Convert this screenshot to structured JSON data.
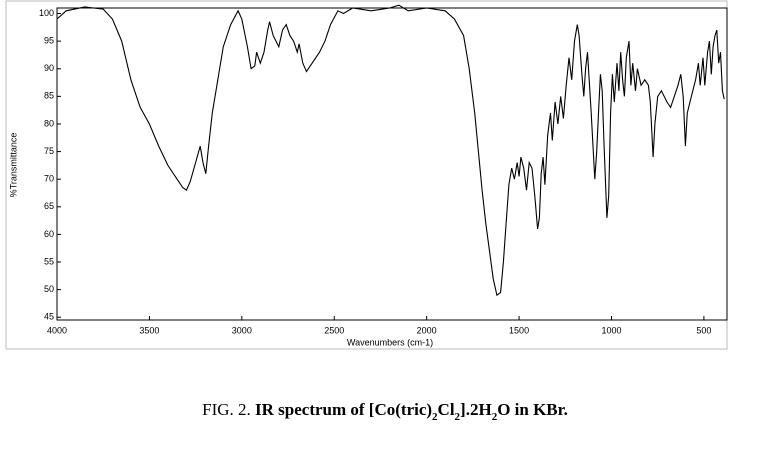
{
  "chart_data": {
    "type": "line",
    "x_label": "Wavenumbers (cm-1)",
    "y_label": "%Transmittance",
    "caption_label": "FIG. 2.",
    "caption_parts": [
      "IR spectrum of [Co(tric)",
      "2",
      "Cl",
      "2",
      "].2H",
      "2",
      "O in KBr."
    ],
    "xlim": [
      4000,
      375
    ],
    "ylim": [
      44.5,
      101
    ],
    "xticks": [
      4000,
      3500,
      3000,
      2500,
      2000,
      1500,
      1000,
      500
    ],
    "yticks": [
      45,
      50,
      55,
      60,
      65,
      70,
      75,
      80,
      85,
      90,
      95,
      100
    ],
    "color": "#000000",
    "x": [
      4000,
      3950,
      3850,
      3750,
      3700,
      3650,
      3600,
      3550,
      3500,
      3450,
      3400,
      3350,
      3320,
      3300,
      3280,
      3250,
      3225,
      3210,
      3195,
      3180,
      3160,
      3130,
      3100,
      3060,
      3020,
      3000,
      2970,
      2950,
      2930,
      2920,
      2900,
      2880,
      2860,
      2850,
      2830,
      2800,
      2780,
      2760,
      2740,
      2720,
      2700,
      2690,
      2670,
      2650,
      2620,
      2580,
      2550,
      2520,
      2480,
      2450,
      2400,
      2300,
      2200,
      2150,
      2100,
      2000,
      1900,
      1850,
      1800,
      1770,
      1740,
      1720,
      1700,
      1680,
      1660,
      1640,
      1620,
      1600,
      1585,
      1570,
      1555,
      1540,
      1525,
      1510,
      1500,
      1490,
      1475,
      1460,
      1445,
      1430,
      1415,
      1400,
      1390,
      1380,
      1370,
      1360,
      1345,
      1330,
      1320,
      1305,
      1290,
      1275,
      1260,
      1245,
      1230,
      1215,
      1200,
      1185,
      1175,
      1160,
      1150,
      1140,
      1130,
      1110,
      1100,
      1090,
      1080,
      1070,
      1060,
      1050,
      1040,
      1025,
      1015,
      1005,
      995,
      985,
      970,
      960,
      950,
      940,
      930,
      920,
      905,
      895,
      885,
      870,
      860,
      840,
      820,
      800,
      790,
      775,
      765,
      750,
      730,
      700,
      680,
      660,
      640,
      625,
      612,
      600,
      590,
      575,
      560,
      545,
      530,
      520,
      505,
      495,
      480,
      470,
      460,
      450,
      440,
      430,
      420,
      410,
      400,
      390
    ],
    "values": [
      99,
      100.5,
      101.2,
      100.8,
      99,
      95,
      88,
      83,
      80,
      76,
      72.5,
      70,
      68.5,
      68,
      69.5,
      73,
      76,
      73,
      71,
      76,
      82,
      88,
      94,
      98,
      100.5,
      99,
      94,
      90,
      90.5,
      93,
      91,
      93,
      97,
      98.5,
      96,
      94,
      97,
      98,
      96,
      95,
      93,
      94.5,
      91,
      89.5,
      91,
      93,
      95,
      98,
      100.5,
      100,
      101,
      100.5,
      101,
      101.5,
      100.5,
      101,
      100.5,
      99,
      96,
      90,
      82,
      75,
      68,
      62,
      57,
      52,
      49,
      49.5,
      55,
      62,
      69,
      72,
      70,
      73,
      70.5,
      74,
      72,
      68,
      73,
      72,
      67,
      61,
      63,
      71,
      74,
      69,
      78,
      82,
      77,
      84,
      80,
      85,
      81,
      87,
      92,
      88,
      95,
      98,
      96,
      89,
      85,
      90,
      93,
      82,
      76,
      70,
      75,
      82,
      89,
      86,
      76,
      63,
      67,
      82,
      89,
      84,
      91,
      86,
      93,
      88,
      85,
      92,
      95,
      87,
      91,
      86,
      90,
      87,
      88,
      87,
      84,
      74,
      80,
      85,
      86,
      84,
      83,
      85,
      87,
      89,
      85,
      76,
      82,
      84,
      86,
      88,
      91,
      87,
      92,
      87,
      93,
      95,
      89,
      94,
      96,
      97,
      91,
      93,
      86,
      84.5
    ]
  }
}
